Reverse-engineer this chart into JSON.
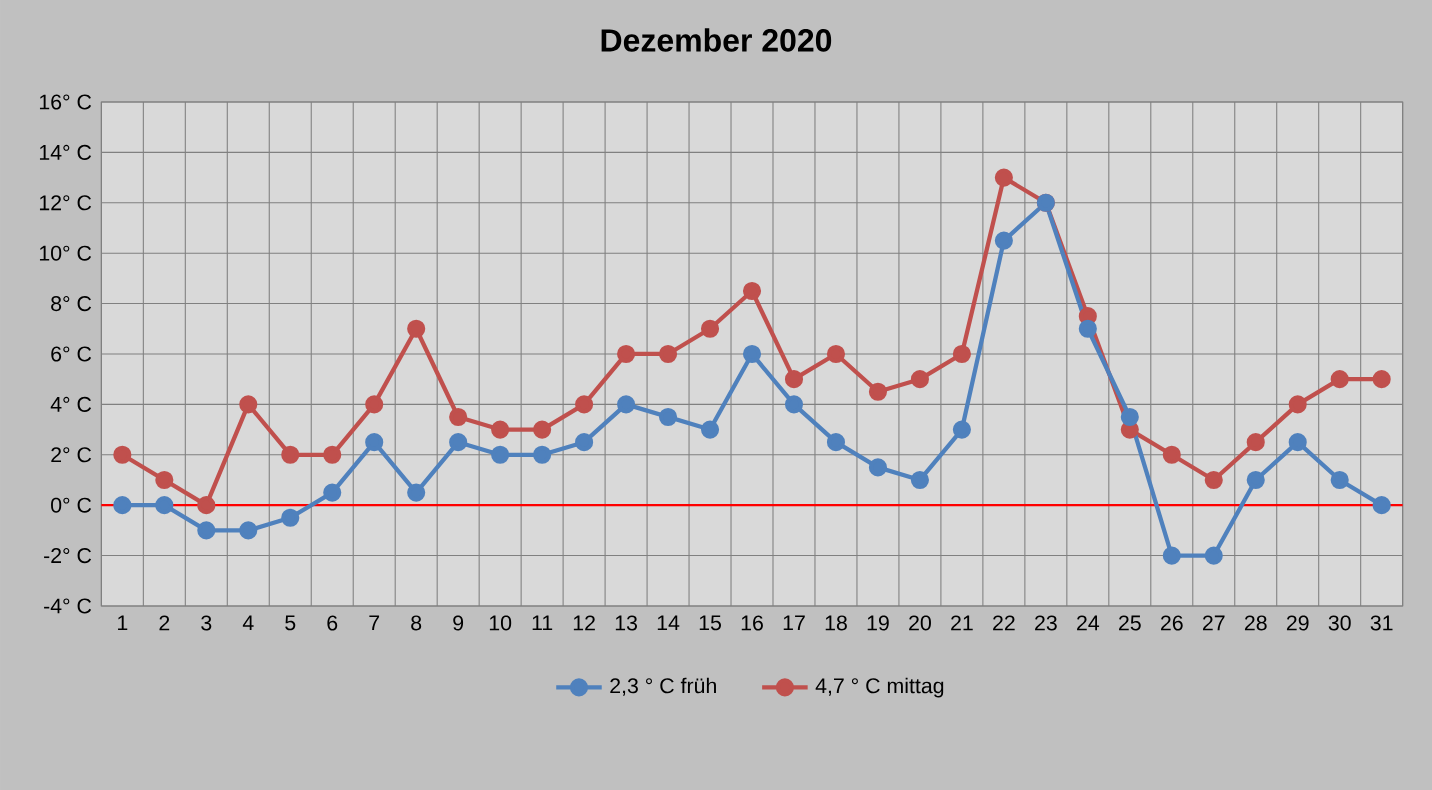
{
  "chart_data": {
    "type": "line",
    "title": "Dezember 2020",
    "categories": [
      "1",
      "2",
      "3",
      "4",
      "5",
      "6",
      "7",
      "8",
      "9",
      "10",
      "11",
      "12",
      "13",
      "14",
      "15",
      "16",
      "17",
      "18",
      "19",
      "20",
      "21",
      "22",
      "23",
      "24",
      "25",
      "26",
      "27",
      "28",
      "29",
      "30",
      "31"
    ],
    "series": [
      {
        "name": "2,3 ° C früh",
        "color": "#4f81bd",
        "values": [
          0,
          0,
          -1,
          -1,
          -0.5,
          0.5,
          2.5,
          0.5,
          2.5,
          2,
          2,
          2.5,
          4,
          3.5,
          3,
          6,
          4,
          2.5,
          1.5,
          1,
          3,
          10.5,
          12,
          7,
          3.5,
          -2,
          -2,
          1,
          2.5,
          1,
          0
        ]
      },
      {
        "name": "4,7 ° C mittag",
        "color": "#c0504d",
        "values": [
          2,
          1,
          0,
          4,
          2,
          2,
          4,
          7,
          3.5,
          3,
          3,
          4,
          6,
          6,
          7,
          8.5,
          5,
          6,
          4.5,
          5,
          6,
          13,
          12,
          7.5,
          3,
          2,
          1,
          2.5,
          4,
          5,
          5
        ]
      }
    ],
    "ylim": [
      -4,
      16
    ],
    "yticks": [
      {
        "value": -4,
        "label": "-4° C"
      },
      {
        "value": -2,
        "label": "-2° C"
      },
      {
        "value": 0,
        "label": "0° C"
      },
      {
        "value": 2,
        "label": "2° C"
      },
      {
        "value": 4,
        "label": "4° C"
      },
      {
        "value": 6,
        "label": "6° C"
      },
      {
        "value": 8,
        "label": "8° C"
      },
      {
        "value": 10,
        "label": "10° C"
      },
      {
        "value": 12,
        "label": "12° C"
      },
      {
        "value": 14,
        "label": "14° C"
      },
      {
        "value": 16,
        "label": "16° C"
      }
    ],
    "ref_lines": [
      {
        "axis": "y",
        "value": 0,
        "color": "#ff0000"
      }
    ],
    "grid": true,
    "legend": "bottom",
    "marker": "circle",
    "line_style": "solid"
  }
}
